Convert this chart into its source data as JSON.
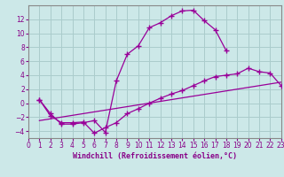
{
  "xlabel": "Windchill (Refroidissement éolien,°C)",
  "background_color": "#cce8e8",
  "grid_color": "#aacccc",
  "line_color": "#990099",
  "xlim": [
    0,
    23
  ],
  "ylim": [
    -5,
    14
  ],
  "xticks": [
    0,
    1,
    2,
    3,
    4,
    5,
    6,
    7,
    8,
    9,
    10,
    11,
    12,
    13,
    14,
    15,
    16,
    17,
    18,
    19,
    20,
    21,
    22,
    23
  ],
  "yticks": [
    -4,
    -2,
    0,
    2,
    4,
    6,
    8,
    10,
    12
  ],
  "curve1_x": [
    1,
    2,
    3,
    4,
    5,
    6,
    7,
    8,
    9,
    10,
    11,
    12,
    13,
    14,
    15,
    16,
    17,
    18
  ],
  "curve1_y": [
    0.5,
    -1.5,
    -3.0,
    -3.0,
    -2.8,
    -2.5,
    -4.2,
    3.2,
    7.0,
    8.2,
    10.8,
    11.5,
    12.5,
    13.2,
    13.3,
    11.8,
    10.5,
    7.5
  ],
  "curve2_x": [
    1,
    2,
    3,
    4,
    5,
    6,
    7,
    8,
    9,
    10,
    11,
    12,
    13,
    14,
    15,
    16,
    17,
    18,
    19,
    20,
    21,
    22,
    23
  ],
  "curve2_y": [
    0.5,
    -1.8,
    -2.8,
    -2.8,
    -2.7,
    -4.3,
    -3.5,
    -2.8,
    -1.5,
    -0.8,
    0.0,
    0.7,
    1.3,
    1.8,
    2.5,
    3.2,
    3.8,
    4.0,
    4.2,
    5.0,
    4.5,
    4.3,
    2.5
  ],
  "curve3_x": [
    1,
    23
  ],
  "curve3_y": [
    -2.5,
    3.0
  ],
  "tick_fontsize": 5.5,
  "label_fontsize": 6.0
}
